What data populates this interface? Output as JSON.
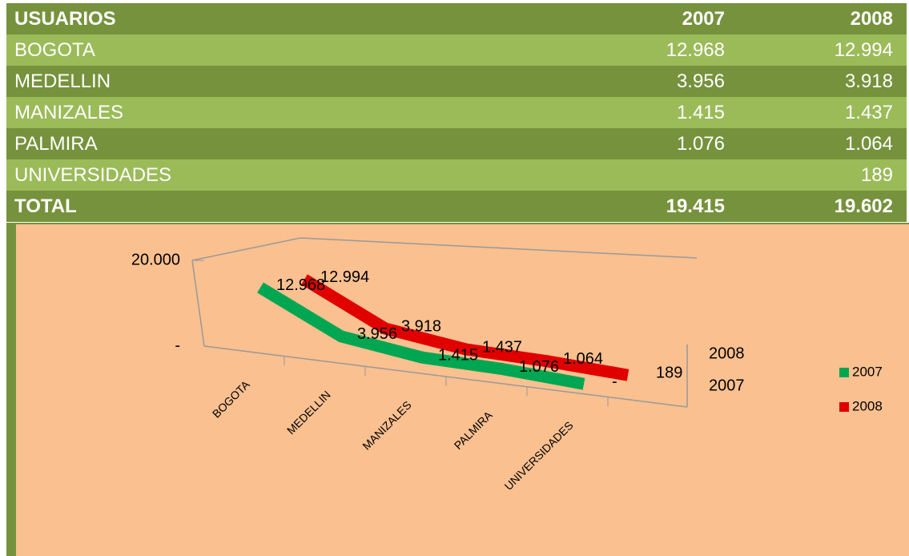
{
  "table": {
    "header": [
      "USUARIOS",
      "2007",
      "2008"
    ],
    "rows": [
      [
        "BOGOTA",
        "12.968",
        "12.994"
      ],
      [
        "MEDELLIN",
        "3.956",
        "3.918"
      ],
      [
        "MANIZALES",
        "1.415",
        "1.437"
      ],
      [
        "PALMIRA",
        "1.076",
        "1.064"
      ],
      [
        "UNIVERSIDADES",
        null,
        "189"
      ]
    ],
    "total": [
      "TOTAL",
      "19.415",
      "19.602"
    ]
  },
  "chart_data": {
    "type": "line",
    "view": "3d",
    "categories": [
      "BOGOTA",
      "MEDELLIN",
      "MANIZALES",
      "PALMIRA",
      "UNIVERSIDADES"
    ],
    "series": [
      {
        "name": "2007",
        "color": "#00a651",
        "values": [
          12968,
          3956,
          1415,
          1076,
          0
        ],
        "value_labels": [
          "12.968",
          "3.956",
          "1.415",
          "1.076",
          "-"
        ]
      },
      {
        "name": "2008",
        "color": "#e00000",
        "values": [
          12994,
          3918,
          1437,
          1064,
          189
        ],
        "value_labels": [
          "12.994",
          "3.918",
          "1.437",
          "1.064",
          "189"
        ]
      }
    ],
    "ylim": [
      0,
      20000
    ],
    "yticks": [
      {
        "value": 0,
        "label": "-"
      },
      {
        "value": 20000,
        "label": "20.000"
      }
    ],
    "legend": "right"
  }
}
